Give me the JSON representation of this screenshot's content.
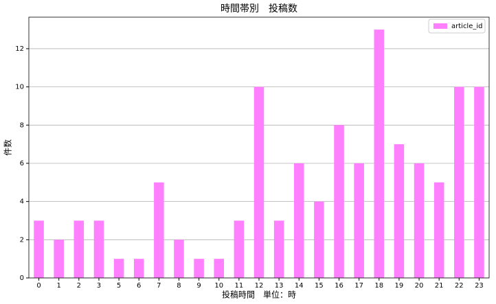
{
  "chart_data": {
    "type": "bar",
    "title": "時間帯別　投稿数",
    "x_label": "投稿時間　単位：時",
    "y_label": "件数",
    "categories": [
      "0",
      "1",
      "2",
      "3",
      "5",
      "6",
      "7",
      "8",
      "9",
      "10",
      "11",
      "12",
      "13",
      "14",
      "15",
      "16",
      "17",
      "18",
      "19",
      "20",
      "21",
      "22",
      "23"
    ],
    "series": [
      {
        "name": "article_id",
        "color": "#ff80ff",
        "values": [
          3,
          2,
          3,
          3,
          1,
          1,
          5,
          2,
          1,
          1,
          3,
          10,
          3,
          6,
          4,
          8,
          6,
          13,
          7,
          6,
          5,
          10,
          10
        ]
      }
    ],
    "ylim": [
      0,
      13.65
    ],
    "yticks": [
      0,
      2,
      4,
      6,
      8,
      10,
      12
    ],
    "grid": true,
    "legend": "upper right"
  }
}
